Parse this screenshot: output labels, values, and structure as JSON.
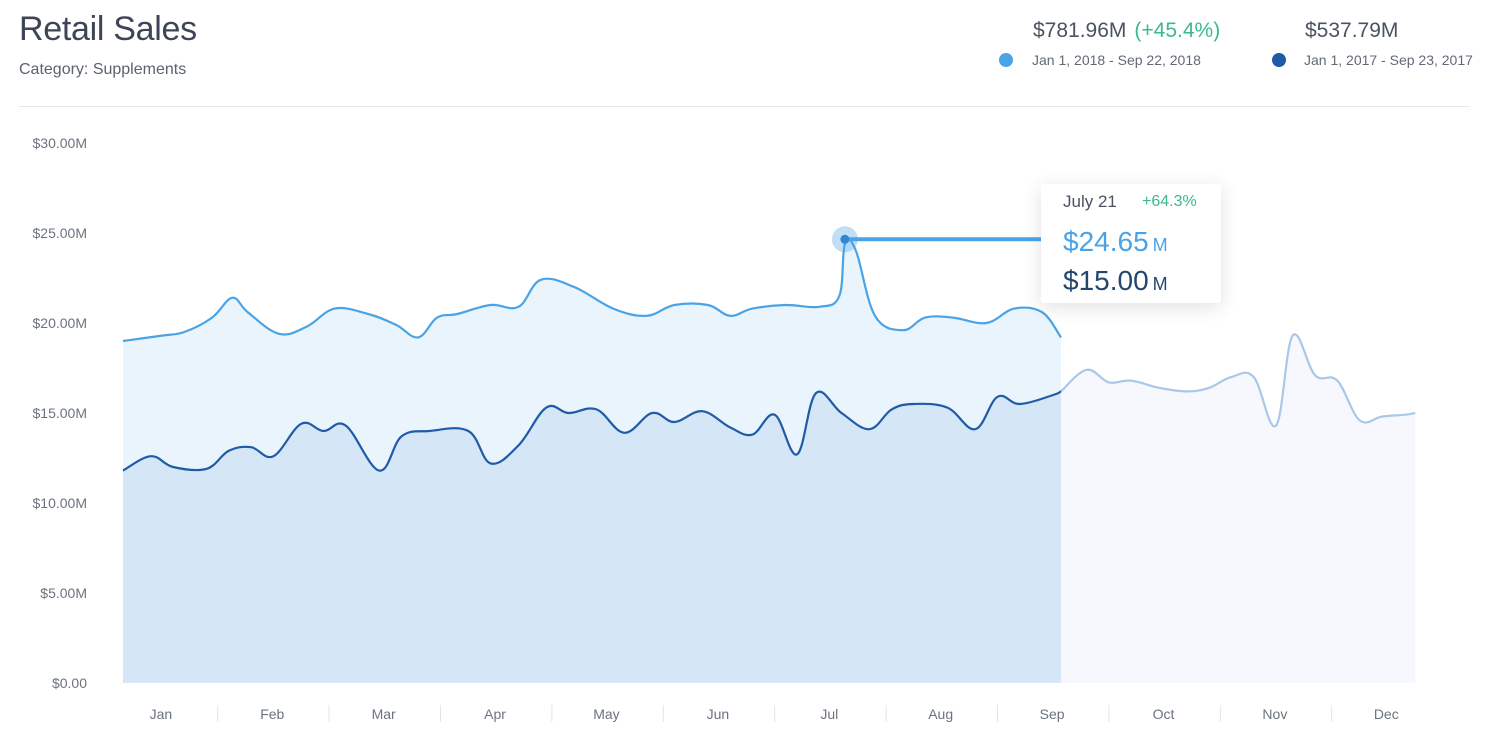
{
  "header": {
    "title": "Retail Sales",
    "subtitle": "Category: Supplements"
  },
  "summary": [
    {
      "amount": "$781.96M",
      "change": "(+45.4%)",
      "range": "Jan 1, 2018 - Sep 22, 2018",
      "color": "#4aa3e6"
    },
    {
      "amount": "$537.79M",
      "change": "",
      "range": "Jan 1, 2017 - Sep 23, 2017",
      "color": "#1f5ba6"
    }
  ],
  "tooltip": {
    "date": "July 21",
    "delta": "+64.3%",
    "value_current": "$24.65",
    "value_previous": "$15.00",
    "unit": "M"
  },
  "chart_data": {
    "type": "area",
    "ylim": [
      0,
      30
    ],
    "y_ticks": [
      "$0.00",
      "$5.00M",
      "$10.00M",
      "$15.00M",
      "$20.00M",
      "$25.00M",
      "$30.00M"
    ],
    "categories": [
      "Jan",
      "Feb",
      "Mar",
      "Apr",
      "May",
      "Jun",
      "Jul",
      "Aug",
      "Sep",
      "Oct",
      "Nov",
      "Dec"
    ],
    "grid": false,
    "highlight": {
      "month_pos": 6.48,
      "value": 24.65
    },
    "series": [
      {
        "color": "#4aa3e6",
        "fill": "#e9f4fc",
        "x": [
          0,
          0.35,
          0.55,
          0.8,
          0.98,
          1.12,
          1.4,
          1.65,
          1.9,
          2.2,
          2.45,
          2.65,
          2.82,
          3.0,
          3.3,
          3.55,
          3.75,
          4.05,
          4.4,
          4.7,
          4.95,
          5.25,
          5.45,
          5.65,
          5.95,
          6.25,
          6.43,
          6.48,
          6.58,
          6.75,
          7.0,
          7.2,
          7.45,
          7.75,
          8.0,
          8.25,
          8.42
        ],
        "values": [
          19,
          19.3,
          19.5,
          20.3,
          21.4,
          20.6,
          19.4,
          19.8,
          20.8,
          20.5,
          19.9,
          19.2,
          20.3,
          20.5,
          21.0,
          20.9,
          22.4,
          22.0,
          20.8,
          20.4,
          21.0,
          21.0,
          20.4,
          20.8,
          21.0,
          20.9,
          21.5,
          24.4,
          24.0,
          20.4,
          19.6,
          20.3,
          20.3,
          20.0,
          20.8,
          20.6,
          19.2
        ]
      },
      {
        "color": "#1f5ba6",
        "fill": "#d5e6f6",
        "x": [
          0,
          0.25,
          0.45,
          0.75,
          0.95,
          1.15,
          1.35,
          1.6,
          1.8,
          2.0,
          2.3,
          2.5,
          2.75,
          3.1,
          3.3,
          3.55,
          3.8,
          4.0,
          4.25,
          4.5,
          4.75,
          4.95,
          5.2,
          5.45,
          5.65,
          5.85,
          6.05,
          6.22,
          6.45,
          6.7,
          6.9,
          7.1,
          7.4,
          7.65,
          7.85,
          8.05,
          8.35,
          8.42
        ],
        "values": [
          11.8,
          12.6,
          12.0,
          11.9,
          12.9,
          13.1,
          12.6,
          14.4,
          14.0,
          14.3,
          11.8,
          13.7,
          14.0,
          14.0,
          12.2,
          13.2,
          15.3,
          15.0,
          15.2,
          13.9,
          15.0,
          14.5,
          15.1,
          14.2,
          13.8,
          14.9,
          12.7,
          16.1,
          15.0,
          14.1,
          15.2,
          15.5,
          15.3,
          14.1,
          15.9,
          15.5,
          16.0,
          16.2
        ]
      },
      {
        "color": "#a9c8e8",
        "fill": "#f7f8fd",
        "x": [
          8.42,
          8.65,
          8.85,
          9.05,
          9.3,
          9.55,
          9.75,
          9.95,
          10.15,
          10.35,
          10.5,
          10.7,
          10.9,
          11.1,
          11.3,
          11.5,
          11.6
        ],
        "values": [
          16.2,
          17.4,
          16.7,
          16.8,
          16.4,
          16.2,
          16.4,
          17.0,
          17.0,
          14.3,
          19.3,
          17.1,
          16.8,
          14.6,
          14.8,
          14.9,
          15.0
        ]
      }
    ]
  }
}
